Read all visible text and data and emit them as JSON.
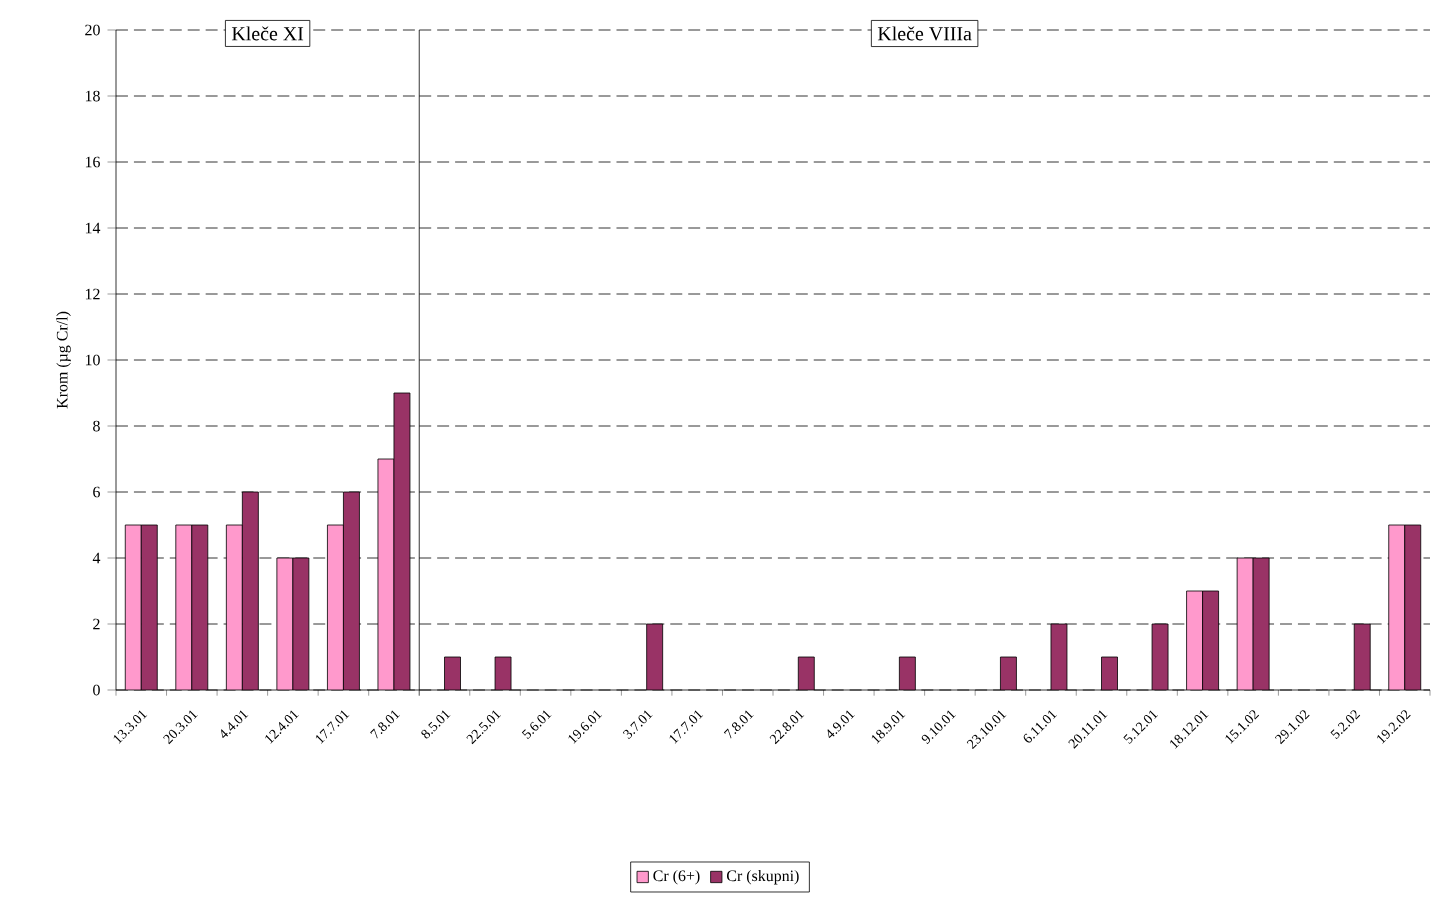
{
  "chart_data": [
    {
      "type": "bar",
      "title": "Kleče XI",
      "ylabel": "Krom (µg Cr/l)",
      "categories": [
        "13.3.01",
        "20.3.01",
        "4.4.01",
        "12.4.01",
        "17.7.01",
        "7.8.01"
      ],
      "series": [
        {
          "color": "#ff99cc",
          "values": [
            5,
            5,
            5,
            4,
            5,
            7
          ]
        },
        {
          "color": "#993366",
          "values": [
            5,
            5,
            6,
            4,
            6,
            9
          ]
        }
      ],
      "ylim": [
        0,
        20
      ],
      "yticks": [
        0,
        2,
        4,
        6,
        8,
        10,
        12,
        14,
        16,
        18,
        20
      ],
      "grid": "y"
    },
    {
      "type": "bar",
      "title": "Kleče VIIIa",
      "categories": [
        "8.5.01",
        "22.5.01",
        "5.6.01",
        "19.6.01",
        "3.7.01",
        "17.7.01",
        "7.8.01",
        "22.8.01",
        "4.9.01",
        "18.9.01",
        "9.10.01",
        "23.10.01",
        "6.11.01",
        "20.11.01",
        "5.12.01",
        "18.12.01",
        "15.1.02",
        "29.1.02",
        "5.2.02",
        "19.2.02"
      ],
      "series": [
        {
          "name": "Cr (6+)",
          "color": "#ff99cc",
          "values": [
            null,
            null,
            null,
            null,
            null,
            null,
            null,
            null,
            null,
            null,
            null,
            null,
            null,
            null,
            null,
            3,
            4,
            null,
            null,
            5
          ]
        },
        {
          "name": "Cr (skupni)",
          "color": "#993366",
          "values": [
            1,
            1,
            null,
            null,
            2,
            null,
            null,
            1,
            null,
            1,
            null,
            1,
            2,
            1,
            2,
            3,
            4,
            null,
            2,
            5
          ]
        }
      ],
      "ylim": [
        0,
        20
      ],
      "yticks": [
        0,
        2,
        4,
        6,
        8,
        10,
        12,
        14,
        16,
        18,
        20
      ],
      "grid": "y",
      "legend": "bottom",
      "tick_labels": "x"
    }
  ]
}
